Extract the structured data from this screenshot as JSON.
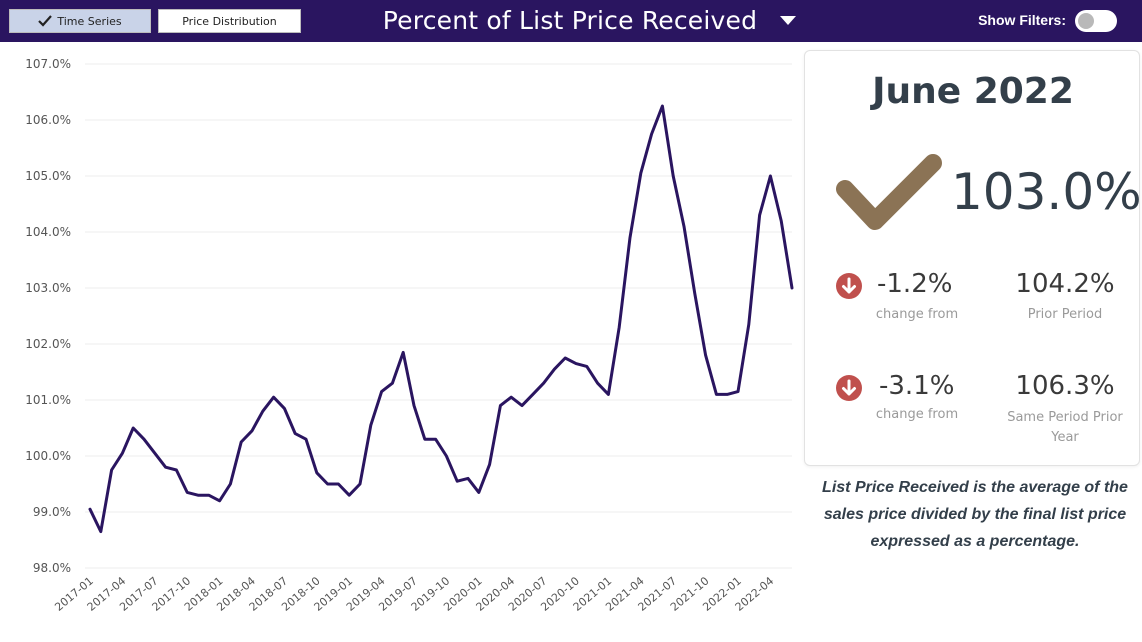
{
  "header": {
    "tab_time_series": "Time Series",
    "tab_price_distribution": "Price Distribution",
    "title": "Percent of List Price Received",
    "show_filters_label": "Show Filters:"
  },
  "summary": {
    "period": "June 2022",
    "value": "103.0%",
    "change1": "-1.2%",
    "change1_label": "change from",
    "prior_value": "104.2%",
    "prior_label": "Prior Period",
    "change2": "-3.1%",
    "change2_label": "change from",
    "year_value": "106.3%",
    "year_label": "Same Period Prior Year"
  },
  "note": "List Price Received is the average of the sales price divided by the final list price expressed as a percentage.",
  "colors": {
    "header_bg": "#2a1560",
    "line": "#2a1560",
    "check": "#8b7355",
    "down_icon": "#c0504d"
  },
  "chart_data": {
    "type": "line",
    "title": "Percent of List Price Received",
    "ylim": [
      98.0,
      107.0
    ],
    "yticks": [
      "98.0%",
      "99.0%",
      "100.0%",
      "101.0%",
      "102.0%",
      "103.0%",
      "104.0%",
      "105.0%",
      "106.0%",
      "107.0%"
    ],
    "xticks": [
      "2017-01",
      "2017-04",
      "2017-07",
      "2017-10",
      "2018-01",
      "2018-04",
      "2018-07",
      "2018-10",
      "2019-01",
      "2019-04",
      "2019-07",
      "2019-10",
      "2020-01",
      "2020-04",
      "2020-07",
      "2020-10",
      "2021-01",
      "2021-04",
      "2021-07",
      "2021-10",
      "2022-01",
      "2022-04"
    ],
    "grid": true,
    "series": [
      {
        "x": [
          "2017-01",
          "2017-02",
          "2017-03",
          "2017-04",
          "2017-05",
          "2017-06",
          "2017-07",
          "2017-08",
          "2017-09",
          "2017-10",
          "2017-11",
          "2017-12",
          "2018-01",
          "2018-02",
          "2018-03",
          "2018-04",
          "2018-05",
          "2018-06",
          "2018-07",
          "2018-08",
          "2018-09",
          "2018-10",
          "2018-11",
          "2018-12",
          "2019-01",
          "2019-02",
          "2019-03",
          "2019-04",
          "2019-05",
          "2019-06",
          "2019-07",
          "2019-08",
          "2019-09",
          "2019-10",
          "2019-11",
          "2019-12",
          "2020-01",
          "2020-02",
          "2020-03",
          "2020-04",
          "2020-05",
          "2020-06",
          "2020-07",
          "2020-08",
          "2020-09",
          "2020-10",
          "2020-11",
          "2020-12",
          "2021-01",
          "2021-02",
          "2021-03",
          "2021-04",
          "2021-05",
          "2021-06",
          "2021-07",
          "2021-08",
          "2021-09",
          "2021-10",
          "2021-11",
          "2021-12",
          "2022-01",
          "2022-02",
          "2022-03",
          "2022-04",
          "2022-05",
          "2022-06"
        ],
        "values": [
          99.05,
          98.65,
          99.75,
          100.05,
          100.5,
          100.3,
          100.05,
          99.8,
          99.75,
          99.35,
          99.3,
          99.3,
          99.2,
          99.5,
          100.25,
          100.45,
          100.8,
          101.05,
          100.85,
          100.4,
          100.3,
          99.7,
          99.5,
          99.5,
          99.3,
          99.5,
          100.55,
          101.15,
          101.3,
          101.85,
          100.9,
          100.3,
          100.3,
          100.0,
          99.55,
          99.6,
          99.35,
          99.85,
          100.9,
          101.05,
          100.9,
          101.1,
          101.3,
          101.55,
          101.75,
          101.65,
          101.6,
          101.3,
          101.1,
          102.3,
          103.9,
          105.05,
          105.75,
          106.25,
          105.0,
          104.1,
          102.9,
          101.8,
          101.1,
          101.1,
          101.15,
          102.35,
          104.3,
          105.0,
          104.2,
          103.0
        ]
      }
    ]
  }
}
